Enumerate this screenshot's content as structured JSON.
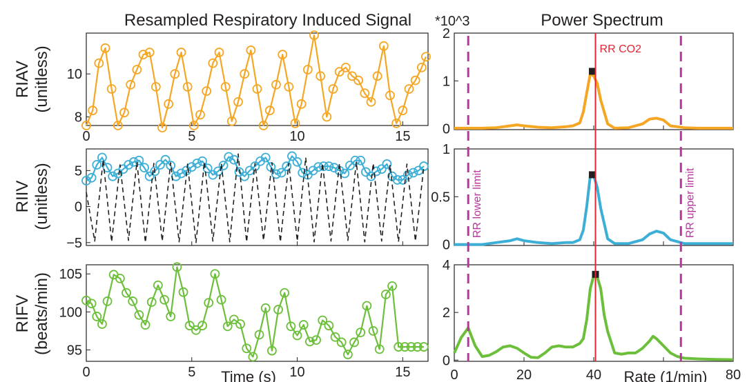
{
  "chart_data": [
    {
      "type": "line",
      "title": "Resampled Respiratory Induced Signal",
      "ylabel": "RIAV\n(unitless)",
      "xlim": [
        0,
        16.2
      ],
      "ylim": [
        7.6,
        11.9
      ],
      "xticks": [
        "0",
        "5",
        "10",
        "15"
      ],
      "yticks": [
        "8",
        "10"
      ],
      "color": "#f5a623",
      "series": [
        {
          "x": [
            0.0,
            0.3,
            0.6,
            0.9,
            1.2,
            1.5,
            1.8,
            2.1,
            2.4,
            2.7,
            3.0,
            3.3,
            3.6,
            3.9,
            4.2,
            4.5,
            4.8,
            5.1,
            5.4,
            5.7,
            6.0,
            6.3,
            6.6,
            6.9,
            7.2,
            7.5,
            7.8,
            8.1,
            8.4,
            8.7,
            9.0,
            9.3,
            9.6,
            9.9,
            10.2,
            10.5,
            10.8,
            11.1,
            11.4,
            11.7,
            12.0,
            12.3,
            12.6,
            12.9,
            13.2,
            13.5,
            13.8,
            14.1,
            14.4,
            14.7,
            15.0,
            15.3,
            15.6,
            15.9,
            16.1
          ],
          "y": [
            7.6,
            8.3,
            10.5,
            11.2,
            9.3,
            7.6,
            8.2,
            9.5,
            10.2,
            10.9,
            11.0,
            9.4,
            7.5,
            8.6,
            10.0,
            11.0,
            9.4,
            7.6,
            8.1,
            9.2,
            10.5,
            11.0,
            9.4,
            7.8,
            8.7,
            10.0,
            11.1,
            9.3,
            7.6,
            8.3,
            9.5,
            10.9,
            9.4,
            7.7,
            8.6,
            10.2,
            11.8,
            9.9,
            8.0,
            9.3,
            10.1,
            10.3,
            9.9,
            9.7,
            9.1,
            8.7,
            9.9,
            11.3,
            9.0,
            7.7,
            8.3,
            9.3,
            9.7,
            10.3,
            10.8
          ]
        }
      ]
    },
    {
      "type": "line",
      "ylabel": "RIIV\n(unitless)",
      "xlim": [
        0,
        16.2
      ],
      "ylim": [
        -5.4,
        8.0
      ],
      "xticks": [],
      "yticks": [
        "5",
        "0",
        "−5"
      ],
      "color": "#3dafd6",
      "series": [
        {
          "x": [
            0.0,
            0.25,
            0.5,
            0.75,
            1.0,
            1.25,
            1.5,
            1.75,
            2.0,
            2.25,
            2.5,
            2.75,
            3.0,
            3.25,
            3.5,
            3.75,
            4.0,
            4.25,
            4.5,
            4.75,
            5.0,
            5.25,
            5.5,
            5.75,
            6.0,
            6.25,
            6.5,
            6.75,
            7.0,
            7.25,
            7.5,
            7.75,
            8.0,
            8.25,
            8.5,
            8.75,
            9.0,
            9.25,
            9.5,
            9.75,
            10.0,
            10.25,
            10.5,
            10.75,
            11.0,
            11.25,
            11.5,
            11.75,
            12.0,
            12.25,
            12.5,
            12.75,
            13.0,
            13.25,
            13.5,
            13.75,
            14.0,
            14.25,
            14.5,
            14.75,
            15.0,
            15.25,
            15.5,
            15.75,
            16.0
          ],
          "y": [
            3.6,
            4.0,
            5.8,
            6.8,
            5.4,
            4.2,
            4.6,
            5.2,
            5.8,
            6.2,
            6.4,
            5.4,
            4.2,
            4.9,
            5.8,
            6.5,
            5.7,
            4.2,
            4.6,
            5.0,
            5.5,
            6.0,
            6.3,
            5.3,
            4.4,
            4.9,
            5.7,
            6.9,
            6.5,
            4.8,
            4.2,
            5.0,
            5.6,
            6.3,
            6.8,
            5.5,
            4.5,
            4.7,
            5.6,
            7.0,
            6.2,
            4.7,
            4.4,
            5.0,
            5.5,
            5.6,
            5.6,
            5.4,
            5.0,
            4.6,
            5.7,
            6.4,
            6.4,
            4.8,
            4.2,
            4.9,
            5.2,
            5.9,
            4.2,
            3.7,
            3.7,
            4.4,
            4.7,
            5.0,
            5.6
          ]
        },
        {
          "x": [
            0.0,
            0.4,
            0.8,
            1.2,
            1.6,
            2.0,
            2.4,
            2.8,
            3.2,
            3.6,
            4.0,
            4.4,
            4.8,
            5.2,
            5.6,
            6.0,
            6.4,
            6.8,
            7.2,
            7.6,
            8.0,
            8.4,
            8.8,
            9.2,
            9.6,
            10.0,
            10.4,
            10.8,
            11.2,
            11.6,
            12.0,
            12.4,
            12.8,
            13.2,
            13.6,
            14.0,
            14.4,
            14.8,
            15.2,
            15.6,
            16.0
          ],
          "y": [
            2.0,
            -4.8,
            6.5,
            -4.9,
            5.8,
            -4.7,
            6.2,
            -5.0,
            6.0,
            -4.8,
            6.1,
            -4.9,
            5.9,
            -5.0,
            6.2,
            -4.8,
            6.0,
            -4.9,
            7.3,
            -4.9,
            6.0,
            -4.7,
            6.1,
            -4.9,
            6.0,
            -4.8,
            6.8,
            -4.9,
            6.0,
            -4.8,
            6.0,
            -4.7,
            6.2,
            -4.9,
            6.0,
            -4.8,
            5.8,
            -4.9,
            5.9,
            -4.8,
            5.5
          ]
        }
      ]
    },
    {
      "type": "line",
      "ylabel": "RIFV\n(beats/min)",
      "xlabel": "Time (s)",
      "xlim": [
        0,
        16.2
      ],
      "ylim": [
        93.5,
        106.2
      ],
      "xticks": [
        "0",
        "5",
        "10",
        "15"
      ],
      "yticks": [
        "105",
        "100",
        "95"
      ],
      "color": "#6cbf3a",
      "series": [
        {
          "x": [
            0.0,
            0.25,
            0.5,
            0.75,
            1.0,
            1.3,
            1.6,
            1.9,
            2.2,
            2.5,
            2.8,
            3.1,
            3.4,
            3.7,
            4.0,
            4.3,
            4.6,
            4.9,
            5.2,
            5.5,
            5.8,
            6.1,
            6.4,
            6.7,
            7.0,
            7.3,
            7.6,
            7.9,
            8.2,
            8.5,
            8.8,
            9.1,
            9.4,
            9.7,
            10.0,
            10.3,
            10.6,
            10.9,
            11.2,
            11.5,
            11.8,
            12.1,
            12.4,
            12.7,
            13.0,
            13.3,
            13.6,
            13.9,
            14.2,
            14.5,
            14.8,
            15.1,
            15.4,
            15.7,
            16.0
          ],
          "y": [
            101.5,
            101.1,
            99.4,
            98.4,
            101.4,
            104.9,
            104.4,
            102.5,
            101.4,
            99.6,
            98.3,
            101.3,
            103.5,
            101.6,
            99.4,
            105.9,
            102.6,
            98.2,
            97.6,
            98.2,
            101.2,
            105.0,
            101.6,
            98.1,
            99.0,
            98.4,
            95.2,
            94.1,
            97.0,
            100.5,
            94.9,
            100.3,
            102.5,
            98.1,
            96.9,
            98.3,
            96.1,
            96.3,
            98.9,
            98.2,
            96.7,
            96.0,
            94.4,
            96.0,
            97.3,
            100.8,
            97.5,
            95.1,
            102.3,
            103.4,
            95.4,
            95.4,
            95.4,
            95.4,
            95.4
          ]
        }
      ]
    },
    {
      "type": "line",
      "title": "Power Spectrum",
      "annotation": "*10^3",
      "xlim": [
        0,
        80
      ],
      "ylim": [
        -0.02,
        2.0
      ],
      "xticks": [],
      "yticks": [
        "2",
        "1",
        "0"
      ],
      "color": "#f5a623",
      "marker_peak": [
        39.6,
        1.2
      ],
      "series": [
        {
          "x": [
            0,
            4,
            8,
            12,
            16,
            18,
            20,
            24,
            28,
            32,
            34,
            36,
            37,
            38,
            39,
            40,
            41,
            42,
            44,
            46,
            50,
            54,
            56,
            58,
            60,
            62,
            66,
            70,
            75,
            80
          ],
          "y": [
            0.01,
            0.01,
            0.01,
            0.02,
            0.06,
            0.08,
            0.06,
            0.03,
            0.02,
            0.04,
            0.06,
            0.12,
            0.35,
            0.75,
            1.15,
            1.1,
            0.95,
            0.6,
            0.1,
            0.01,
            0.02,
            0.1,
            0.2,
            0.22,
            0.18,
            0.06,
            0.02,
            0.01,
            0.01,
            0.01
          ]
        }
      ]
    },
    {
      "type": "line",
      "xlim": [
        0,
        80
      ],
      "ylim": [
        -0.01,
        1.0
      ],
      "xticks": [],
      "yticks": [
        "1",
        "0.5",
        "0"
      ],
      "color": "#3dafd6",
      "marker_peak": [
        39.6,
        0.73
      ],
      "series": [
        {
          "x": [
            0,
            4,
            8,
            12,
            16,
            18,
            20,
            24,
            28,
            32,
            34,
            36,
            37,
            38,
            39,
            40,
            41,
            42,
            44,
            46,
            50,
            54,
            56,
            58,
            60,
            62,
            66,
            70,
            75,
            80
          ],
          "y": [
            0.0,
            0.0,
            0.0,
            0.02,
            0.04,
            0.06,
            0.04,
            0.02,
            0.01,
            0.02,
            0.02,
            0.05,
            0.15,
            0.4,
            0.72,
            0.72,
            0.6,
            0.38,
            0.06,
            0.01,
            0.01,
            0.05,
            0.11,
            0.14,
            0.12,
            0.05,
            0.01,
            0.01,
            0.01,
            0.01
          ]
        }
      ]
    },
    {
      "type": "line",
      "xlabel": "Rate (1/min)",
      "xlim": [
        0,
        80
      ],
      "ylim": [
        -0.05,
        4.0
      ],
      "xticks": [
        "0",
        "20",
        "40",
        "80"
      ],
      "xtick_values": [
        0,
        20,
        40,
        80
      ],
      "yticks": [
        "4",
        "2",
        "0"
      ],
      "color": "#6cbf3a",
      "marker_peak": [
        40.5,
        3.6
      ],
      "series": [
        {
          "x": [
            0,
            2,
            4,
            6,
            8,
            10,
            12,
            14,
            16,
            18,
            20,
            22,
            24,
            26,
            28,
            30,
            32,
            34,
            36,
            37,
            38,
            39,
            40,
            41,
            42,
            43,
            44,
            46,
            48,
            50,
            52,
            54,
            56,
            57,
            58,
            60,
            62,
            64,
            66,
            70,
            75,
            80
          ],
          "y": [
            0.3,
            0.95,
            1.35,
            0.6,
            0.15,
            0.2,
            0.35,
            0.55,
            0.6,
            0.5,
            0.3,
            0.12,
            0.1,
            0.3,
            0.55,
            0.6,
            0.55,
            0.55,
            0.7,
            0.9,
            1.7,
            3.0,
            3.55,
            3.5,
            3.0,
            1.9,
            1.2,
            0.3,
            0.25,
            0.3,
            0.3,
            0.5,
            0.8,
            1.0,
            0.9,
            0.6,
            0.3,
            0.15,
            0.08,
            0.05,
            0.03,
            0.02
          ]
        }
      ]
    }
  ],
  "annotations": {
    "rr_co2": "RR CO2",
    "rr_co2_x": 40.5,
    "lower_limit": "RR lower limit",
    "lower_limit_x": 4,
    "upper_limit": "RR upper limit",
    "upper_limit_x": 65,
    "red_color": "#e8232f",
    "magenta_color": "#b7359d"
  }
}
